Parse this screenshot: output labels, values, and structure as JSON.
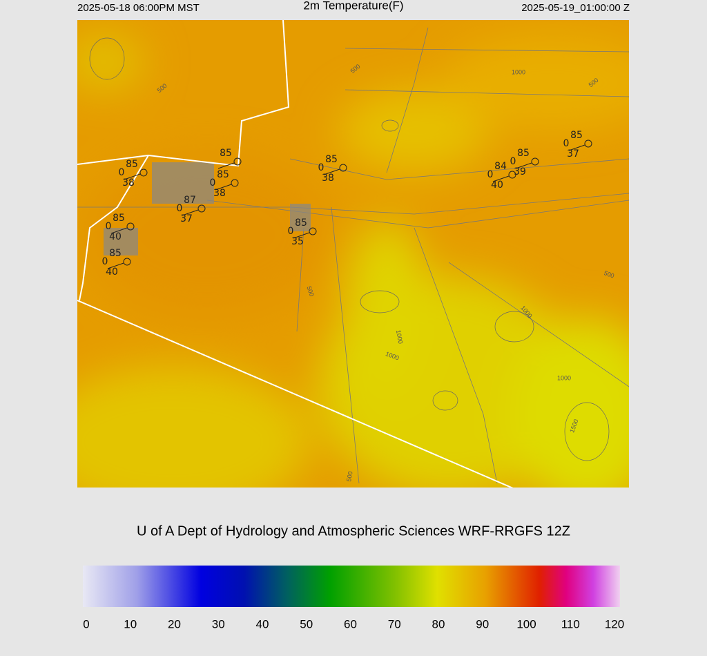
{
  "header": {
    "left": "2025-05-18 06:00PM MST",
    "title": "2m Temperature(F)",
    "right": "2025-05-19_01:00:00 Z"
  },
  "stations": [
    {
      "temp": 85,
      "left": 0,
      "bottom": 38
    },
    {
      "temp": 85
    },
    {
      "temp": 85,
      "left": 0,
      "bottom": 38
    },
    {
      "temp": 87,
      "left": 0,
      "bottom": 37
    },
    {
      "temp": 85,
      "left": 0,
      "bottom": 40
    },
    {
      "temp": 85,
      "left": 0,
      "bottom": 40
    },
    {
      "temp": 85,
      "left": 0,
      "bottom": 35
    },
    {
      "temp": 85,
      "left": 0,
      "bottom": 38
    },
    {
      "temp": 84,
      "left": 0,
      "bottom": 40
    },
    {
      "temp": 85,
      "left": 0,
      "bottom": 39
    },
    {
      "temp": 85,
      "left": 0,
      "bottom": 37
    }
  ],
  "contour_labels": [
    500,
    1000,
    500,
    500,
    500,
    500,
    1000,
    1000,
    1000,
    1000,
    1500,
    500
  ],
  "footer": "U of A Dept of Hydrology and Atmospheric Sciences WRF-RRGFS 12Z",
  "colorbar": {
    "range": [
      0,
      120
    ],
    "ticks": [
      0,
      10,
      20,
      30,
      40,
      50,
      60,
      70,
      80,
      90,
      100,
      110,
      120
    ]
  }
}
